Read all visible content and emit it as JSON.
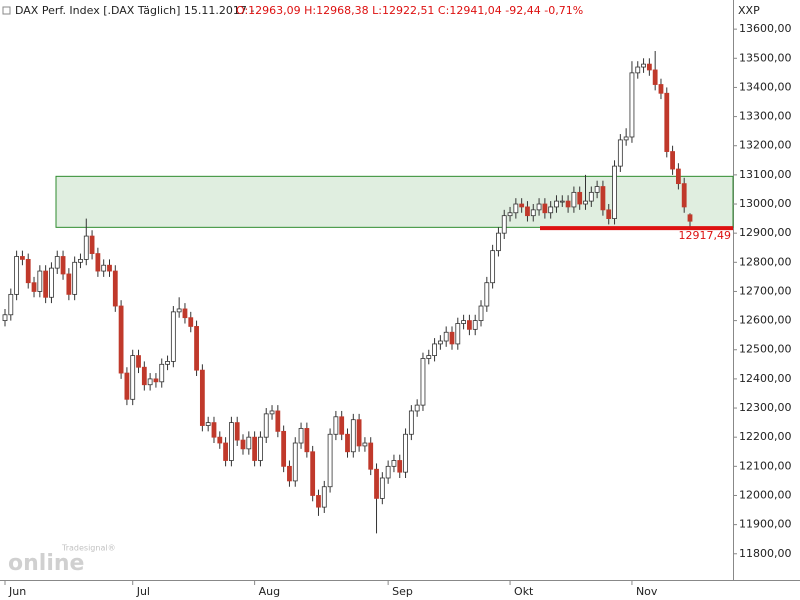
{
  "chart_data": {
    "type": "candlestick",
    "title": "DAX Perf. Index [.DAX  Täglich] 15.11.2017 -",
    "subtitle": "O:12963,09 H:12968,38 L:12922,51 C:12941,04 -92,44 -0,71%",
    "axis_code": "XXP",
    "branding": {
      "small": "Tradesignal®",
      "big": "online"
    },
    "categories": [
      "Jun",
      null,
      null,
      null,
      null,
      null,
      null,
      null,
      null,
      null,
      null,
      null,
      null,
      null,
      null,
      null,
      null,
      null,
      null,
      null,
      null,
      null,
      "Jul",
      null,
      null,
      null,
      null,
      null,
      null,
      null,
      null,
      null,
      null,
      null,
      null,
      null,
      null,
      null,
      null,
      null,
      null,
      null,
      null,
      "Aug",
      null,
      null,
      null,
      null,
      null,
      null,
      null,
      null,
      null,
      null,
      null,
      null,
      null,
      null,
      null,
      null,
      null,
      null,
      null,
      null,
      null,
      null,
      "Sep",
      null,
      null,
      null,
      null,
      null,
      null,
      null,
      null,
      null,
      null,
      null,
      null,
      null,
      null,
      null,
      null,
      null,
      null,
      null,
      null,
      "Okt",
      null,
      null,
      null,
      null,
      null,
      null,
      null,
      null,
      null,
      null,
      null,
      null,
      null,
      null,
      null,
      null,
      null,
      null,
      null,
      null,
      "Nov",
      null,
      null,
      null,
      null,
      null,
      null,
      null,
      null,
      null,
      null
    ],
    "series": [
      {
        "name": "DAX Perf. Index",
        "up_color": "#ffffff",
        "down_color": "#c0392b",
        "open": [
          12600,
          12620,
          12690,
          12820,
          12810,
          12730,
          12700,
          12770,
          12680,
          12780,
          12820,
          12760,
          12690,
          12800,
          12810,
          12890,
          12830,
          12770,
          12790,
          12770,
          12650,
          12420,
          12330,
          12480,
          12440,
          12380,
          12400,
          12390,
          12450,
          12460,
          12630,
          12640,
          12610,
          12580,
          12430,
          12240,
          12250,
          12200,
          12180,
          12120,
          12250,
          12190,
          12160,
          12200,
          12120,
          12200,
          12280,
          12290,
          12220,
          12100,
          12050,
          12180,
          12230,
          12150,
          12000,
          11960,
          12030,
          12210,
          12270,
          12210,
          12150,
          12260,
          12170,
          12180,
          12090,
          11990,
          12060,
          12100,
          12120,
          12080,
          12210,
          12290,
          12310,
          12470,
          12480,
          12520,
          12530,
          12560,
          12520,
          12590,
          12600,
          12570,
          12600,
          12650,
          12730,
          12840,
          12900,
          12960,
          12970,
          13000,
          12990,
          12960,
          12980,
          13000,
          12970,
          12990,
          13010,
          13010,
          12990,
          13040,
          13000,
          13010,
          13040,
          13060,
          12980,
          12950,
          13130,
          13220,
          13230,
          13450,
          13470,
          13480,
          13460,
          13410,
          13380,
          13180,
          13120,
          13070,
          12963.09
        ],
        "high": [
          12640,
          12710,
          12840,
          12840,
          12830,
          12750,
          12790,
          12790,
          12800,
          12840,
          12840,
          12780,
          12820,
          12830,
          12950,
          12910,
          12850,
          12810,
          12810,
          12790,
          12670,
          12440,
          12500,
          12500,
          12460,
          12420,
          12420,
          12470,
          12480,
          12650,
          12680,
          12660,
          12630,
          12600,
          12450,
          12270,
          12270,
          12220,
          12200,
          12270,
          12270,
          12210,
          12220,
          12220,
          12220,
          12300,
          12310,
          12310,
          12240,
          12120,
          12200,
          12250,
          12250,
          12170,
          12020,
          12050,
          12230,
          12290,
          12290,
          12230,
          12280,
          12280,
          12200,
          12200,
          12110,
          12080,
          12120,
          12140,
          12140,
          12230,
          12310,
          12330,
          12490,
          12500,
          12540,
          12550,
          12580,
          12580,
          12610,
          12620,
          12620,
          12620,
          12670,
          12750,
          12860,
          12920,
          12980,
          12990,
          13020,
          13020,
          13010,
          13000,
          13020,
          13020,
          13010,
          13030,
          13030,
          13030,
          13060,
          13060,
          13100,
          13060,
          13080,
          13080,
          13000,
          13150,
          13240,
          13260,
          13490,
          13490,
          13500,
          13500,
          13525,
          13430,
          13400,
          13200,
          13140,
          13090,
          12968.38
        ],
        "low": [
          12580,
          12600,
          12670,
          12790,
          12710,
          12680,
          12680,
          12660,
          12660,
          12760,
          12740,
          12670,
          12670,
          12780,
          12790,
          12810,
          12750,
          12750,
          12750,
          12630,
          12400,
          12310,
          12310,
          12420,
          12360,
          12360,
          12370,
          12370,
          12430,
          12440,
          12610,
          12590,
          12560,
          12410,
          12220,
          12220,
          12180,
          12160,
          12100,
          12100,
          12170,
          12140,
          12140,
          12100,
          12100,
          12180,
          12260,
          12200,
          12080,
          12030,
          12030,
          12160,
          12130,
          11980,
          11930,
          11940,
          12010,
          12190,
          12190,
          12130,
          12130,
          12150,
          12150,
          12070,
          11870,
          11970,
          12040,
          12080,
          12060,
          12060,
          12190,
          12270,
          12290,
          12450,
          12460,
          12500,
          12510,
          12500,
          12500,
          12570,
          12550,
          12550,
          12580,
          12630,
          12710,
          12820,
          12880,
          12940,
          12950,
          12970,
          12940,
          12940,
          12960,
          12950,
          12950,
          12970,
          12990,
          12970,
          12970,
          12980,
          12980,
          12990,
          13020,
          12960,
          12930,
          12930,
          13110,
          13200,
          13210,
          13430,
          13450,
          13440,
          13390,
          13360,
          13160,
          13100,
          13050,
          12970,
          12922.51
        ],
        "close": [
          12620,
          12690,
          12820,
          12810,
          12730,
          12700,
          12770,
          12680,
          12780,
          12820,
          12760,
          12690,
          12800,
          12810,
          12890,
          12830,
          12770,
          12790,
          12770,
          12650,
          12420,
          12330,
          12480,
          12440,
          12380,
          12400,
          12390,
          12450,
          12460,
          12630,
          12640,
          12610,
          12580,
          12430,
          12240,
          12250,
          12200,
          12180,
          12120,
          12250,
          12190,
          12160,
          12200,
          12120,
          12200,
          12280,
          12290,
          12220,
          12100,
          12050,
          12180,
          12230,
          12150,
          12000,
          11960,
          12030,
          12210,
          12270,
          12210,
          12150,
          12260,
          12170,
          12180,
          12090,
          11990,
          12060,
          12100,
          12120,
          12080,
          12210,
          12290,
          12310,
          12470,
          12480,
          12520,
          12530,
          12560,
          12520,
          12590,
          12600,
          12570,
          12600,
          12650,
          12730,
          12840,
          12900,
          12960,
          12970,
          13000,
          12990,
          12960,
          12980,
          13000,
          12970,
          12990,
          13010,
          13010,
          12990,
          13040,
          13000,
          13010,
          13040,
          13060,
          12980,
          12950,
          13130,
          13220,
          13230,
          13450,
          13470,
          13480,
          13460,
          13410,
          13380,
          13180,
          13120,
          13070,
          12990,
          12941.04
        ]
      }
    ],
    "zone": {
      "low": 12920,
      "high": 13095,
      "color": "#2e8b2e"
    },
    "level": {
      "value": 12917.49,
      "label": "12917,49",
      "color": "#dd1111"
    },
    "ylim": [
      11710,
      13700
    ],
    "yticks": [
      {
        "value": 11800,
        "label": "11800,00"
      },
      {
        "value": 11900,
        "label": "11900,00"
      },
      {
        "value": 12000,
        "label": "12000,00"
      },
      {
        "value": 12100,
        "label": "12100,00"
      },
      {
        "value": 12200,
        "label": "12200,00"
      },
      {
        "value": 12300,
        "label": "12300,00"
      },
      {
        "value": 12400,
        "label": "12400,00"
      },
      {
        "value": 12500,
        "label": "12500,00"
      },
      {
        "value": 12600,
        "label": "12600,00"
      },
      {
        "value": 12700,
        "label": "12700,00"
      },
      {
        "value": 12800,
        "label": "12800,00"
      },
      {
        "value": 12900,
        "label": "12900,00"
      },
      {
        "value": 13000,
        "label": "13000,00"
      },
      {
        "value": 13100,
        "label": "13100,00"
      },
      {
        "value": 13200,
        "label": "13200,00"
      },
      {
        "value": 13300,
        "label": "13300,00"
      },
      {
        "value": 13400,
        "label": "13400,00"
      },
      {
        "value": 13500,
        "label": "13500,00"
      },
      {
        "value": 13600,
        "label": "13600,00"
      }
    ]
  }
}
